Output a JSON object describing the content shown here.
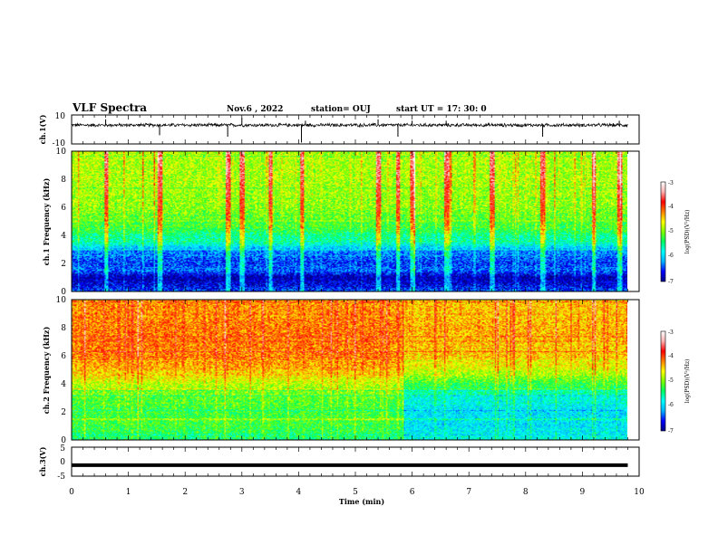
{
  "header": {
    "title": "VLF Spectra",
    "date": "Nov.6 , 2022",
    "station": "station= OUJ",
    "start": "start UT = 17: 30: 0"
  },
  "chart_data": [
    {
      "type": "line",
      "name": "ch1-waveform",
      "xlabel": "",
      "ylabel": "ch.1(V)",
      "xlim": [
        0,
        10
      ],
      "ylim": [
        -10,
        10
      ],
      "y_ticklabels": [
        "10",
        "-10"
      ],
      "baseline": 3,
      "noise_amplitude": 1,
      "spikes": [
        {
          "x": 0.6,
          "y": 7
        },
        {
          "x": 1.55,
          "y": -4
        },
        {
          "x": 2.75,
          "y": -5
        },
        {
          "x": 3.0,
          "y": 8
        },
        {
          "x": 4.05,
          "y": -9
        },
        {
          "x": 4.12,
          "y": 6
        },
        {
          "x": 5.4,
          "y": 7
        },
        {
          "x": 5.75,
          "y": -5
        },
        {
          "x": 6.0,
          "y": 6
        },
        {
          "x": 6.6,
          "y": 6
        },
        {
          "x": 8.3,
          "y": -5
        },
        {
          "x": 9.65,
          "y": 6
        }
      ]
    },
    {
      "type": "heatmap",
      "name": "ch1-spectrogram",
      "ylabel": "ch.1 Frequency (kHz)",
      "xlim": [
        0,
        9.8
      ],
      "ylim": [
        0,
        10
      ],
      "y_ticklabels": [
        "0",
        "2",
        "4",
        "6",
        "8",
        "10"
      ],
      "value_label": "log(PSD)(V²/Hz)",
      "colorbar_ticklabels": [
        "-3",
        "-4",
        "-5",
        "-6",
        "-7"
      ],
      "clim": [
        -7,
        -3
      ],
      "frequency_profile": [
        {
          "f": 0,
          "v": -6.4
        },
        {
          "f": 0.4,
          "v": -6.7
        },
        {
          "f": 1.0,
          "v": -6.9
        },
        {
          "f": 1.5,
          "v": -6.3
        },
        {
          "f": 2.0,
          "v": -6.5
        },
        {
          "f": 2.8,
          "v": -6.2
        },
        {
          "f": 3.5,
          "v": -5.6
        },
        {
          "f": 4.5,
          "v": -5.0
        },
        {
          "f": 6.0,
          "v": -4.7
        },
        {
          "f": 8.0,
          "v": -4.6
        },
        {
          "f": 10.0,
          "v": -4.6
        }
      ],
      "bright_columns_min": [
        0.6,
        1.55,
        2.75,
        3.0,
        3.5,
        4.05,
        5.4,
        5.75,
        6.0,
        6.6,
        7.4,
        8.3,
        9.2,
        9.65
      ]
    },
    {
      "type": "heatmap",
      "name": "ch2-spectrogram",
      "ylabel": "ch.2 Frequency (kHz)",
      "xlim": [
        0,
        9.8
      ],
      "ylim": [
        0,
        10
      ],
      "y_ticklabels": [
        "0",
        "2",
        "4",
        "6",
        "8",
        "10"
      ],
      "value_label": "log(PSD)(V²/Hz)",
      "colorbar_ticklabels": [
        "-3",
        "-4",
        "-5",
        "-6",
        "-7"
      ],
      "clim": [
        -7,
        -3
      ],
      "segments": [
        {
          "t_start": 0,
          "t_end": 5.85,
          "frequency_profile": [
            {
              "f": 0,
              "v": -5.2
            },
            {
              "f": 1.0,
              "v": -5.0
            },
            {
              "f": 2.0,
              "v": -5.0
            },
            {
              "f": 3.0,
              "v": -4.9
            },
            {
              "f": 4.0,
              "v": -4.5
            },
            {
              "f": 5.0,
              "v": -4.0
            },
            {
              "f": 6.0,
              "v": -3.8
            },
            {
              "f": 8.0,
              "v": -3.8
            },
            {
              "f": 10.0,
              "v": -3.9
            }
          ]
        },
        {
          "t_start": 5.85,
          "t_end": 9.8,
          "frequency_profile": [
            {
              "f": 0,
              "v": -5.6
            },
            {
              "f": 1.0,
              "v": -5.8
            },
            {
              "f": 2.0,
              "v": -5.8
            },
            {
              "f": 3.0,
              "v": -5.6
            },
            {
              "f": 4.0,
              "v": -5.0
            },
            {
              "f": 5.0,
              "v": -4.4
            },
            {
              "f": 6.0,
              "v": -4.1
            },
            {
              "f": 8.0,
              "v": -4.0
            },
            {
              "f": 10.0,
              "v": -4.1
            }
          ]
        }
      ]
    },
    {
      "type": "line",
      "name": "ch3-waveform",
      "xlabel": "Time (min)",
      "ylabel": "ch.3(V)",
      "xlim": [
        0,
        10
      ],
      "ylim": [
        -5,
        5
      ],
      "y_ticklabels": [
        "5",
        "0",
        "-5"
      ],
      "x_ticklabels": [
        "0",
        "1",
        "2",
        "3",
        "4",
        "5",
        "6",
        "7",
        "8",
        "9",
        "10"
      ],
      "constant_value": -1.2
    }
  ],
  "colors": {
    "axes": "#000000",
    "trace": "#000000",
    "colormap": [
      "#000080",
      "#0000ff",
      "#00b0ff",
      "#00ffff",
      "#00ff60",
      "#7fff00",
      "#ffff00",
      "#ff8000",
      "#ff0000",
      "#ffb0b0",
      "#ffffff"
    ]
  }
}
